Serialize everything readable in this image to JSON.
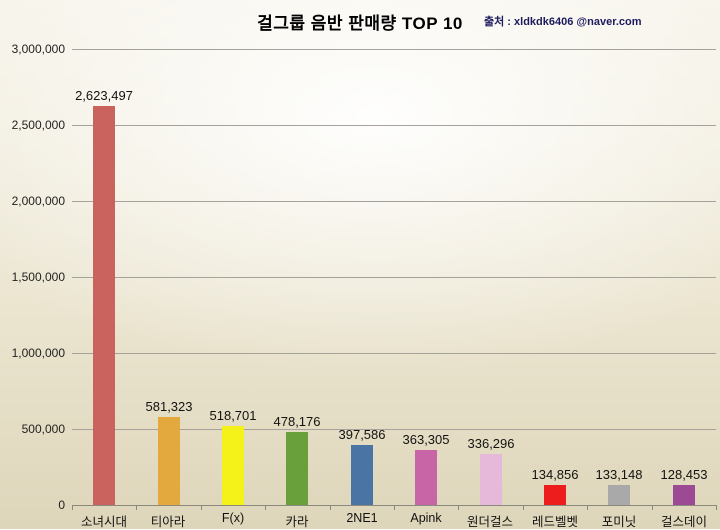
{
  "title": "걸그룹 음반 판매량 TOP 10",
  "source": "출처 : xldkdk6406 @naver.com",
  "chart_data": {
    "type": "bar",
    "title": "걸그룹 음반 판매량 TOP 10",
    "source_annotation": "출처 : xldkdk6406 @naver.com",
    "categories": [
      "소녀시대",
      "티아라",
      "F(x)",
      "카라",
      "2NE1",
      "Apink",
      "원더걸스",
      "레드벨벳",
      "포미닛",
      "걸스데이"
    ],
    "values": [
      2623497,
      581323,
      518701,
      478176,
      397586,
      363305,
      336296,
      134856,
      133148,
      128453
    ],
    "value_labels": [
      "2,623,497",
      "581,323",
      "518,701",
      "478,176",
      "397,586",
      "363,305",
      "336,296",
      "134,856",
      "133,148",
      "128,453"
    ],
    "bar_colors": [
      "#ca625e",
      "#e3a93f",
      "#f4f218",
      "#69a03b",
      "#4a74a3",
      "#c765a6",
      "#e6b9da",
      "#ee1d1d",
      "#a9a9a9",
      "#9c4a94"
    ],
    "xlabel": "",
    "ylabel": "",
    "ylim": [
      0,
      3000000
    ],
    "y_ticks": [
      0,
      500000,
      1000000,
      1500000,
      2000000,
      2500000,
      3000000
    ],
    "y_tick_labels": [
      "0",
      "500,000",
      "1,000,000",
      "1,500,000",
      "2,000,000",
      "2,500,000",
      "3,000,000"
    ],
    "grid": "horizontal",
    "legend": "none"
  },
  "style": {
    "gridline_color": "#a5a29b",
    "axis_color": "#8a887f",
    "title_color": "#000000",
    "source_color": "#1b1b5e"
  }
}
